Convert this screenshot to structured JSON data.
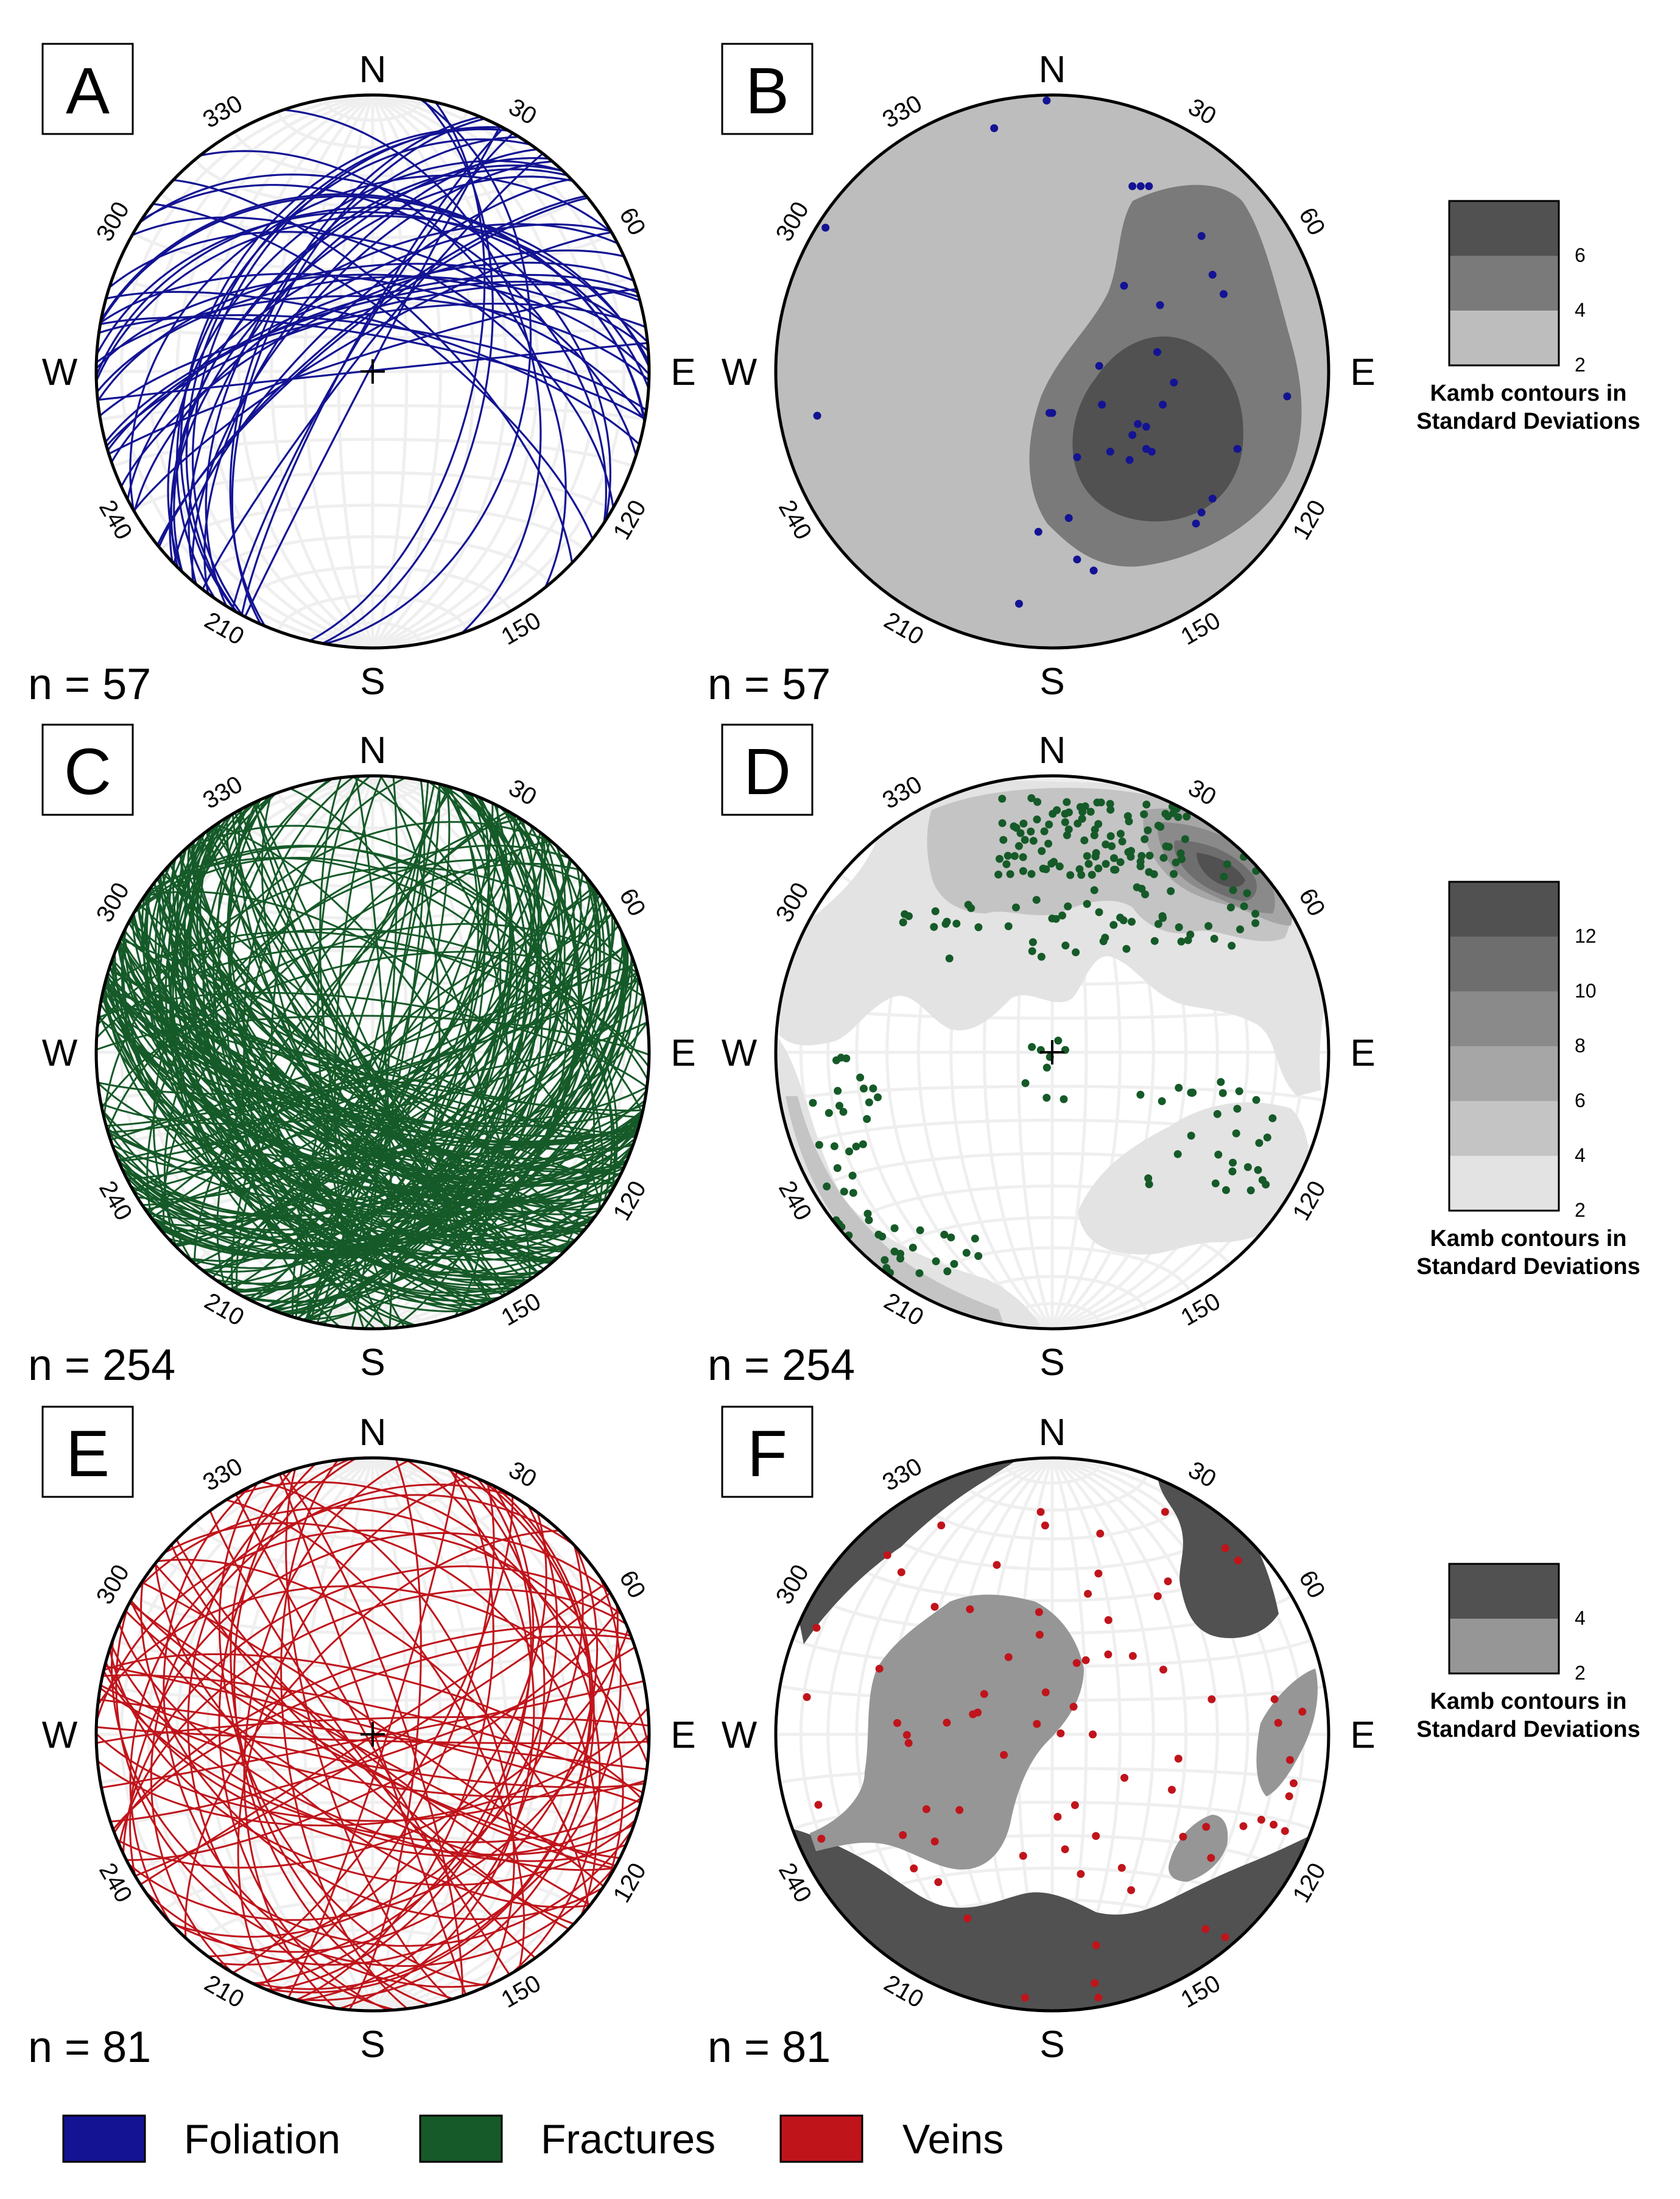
{
  "compass": {
    "north": "N",
    "south": "S",
    "west": "W",
    "east": "E"
  },
  "azimuth_labels": [
    "30",
    "60",
    "120",
    "150",
    "210",
    "240",
    "300",
    "330"
  ],
  "panels": [
    {
      "id": "A",
      "label": "A",
      "type": "great-circles",
      "n_label": "n = 57",
      "n": 57,
      "set": "Foliation"
    },
    {
      "id": "B",
      "label": "B",
      "type": "poles-contoured",
      "n_label": "n = 57",
      "n": 57,
      "set": "Foliation"
    },
    {
      "id": "C",
      "label": "C",
      "type": "great-circles",
      "n_label": "n = 254",
      "n": 254,
      "set": "Fractures"
    },
    {
      "id": "D",
      "label": "D",
      "type": "poles-contoured",
      "n_label": "n = 254",
      "n": 254,
      "set": "Fractures"
    },
    {
      "id": "E",
      "label": "E",
      "type": "great-circles",
      "n_label": "n = 81",
      "n": 81,
      "set": "Veins"
    },
    {
      "id": "F",
      "label": "F",
      "type": "poles-contoured",
      "n_label": "n = 81",
      "n": 81,
      "set": "Veins"
    }
  ],
  "kamb_scales": [
    {
      "panel": "B",
      "ticks": [
        "2",
        "4",
        "6"
      ],
      "shades": [
        "#bdbdbd",
        "#7a7a7a",
        "#515151"
      ],
      "title": [
        "Kamb contours in",
        "Standard Deviations"
      ]
    },
    {
      "panel": "D",
      "ticks": [
        "2",
        "4",
        "6",
        "8",
        "10",
        "12"
      ],
      "shades": [
        "#e3e3e3",
        "#c4c4c4",
        "#a6a6a6",
        "#8a8a8a",
        "#6e6e6e",
        "#515151"
      ],
      "title": [
        "Kamb contours in",
        "Standard Deviations"
      ]
    },
    {
      "panel": "F",
      "ticks": [
        "2",
        "4"
      ],
      "shades": [
        "#969696",
        "#515151"
      ],
      "title": [
        "Kamb contours in",
        "Standard Deviations"
      ]
    }
  ],
  "legend": [
    {
      "label": "Foliation",
      "color": "#131394"
    },
    {
      "label": "Fractures",
      "color": "#155a28"
    },
    {
      "label": "Veins",
      "color": "#c0141b"
    }
  ],
  "colors": {
    "foliation": "#131394",
    "fractures": "#155a28",
    "veins": "#c0141b",
    "net_grid": "#efefef"
  }
}
